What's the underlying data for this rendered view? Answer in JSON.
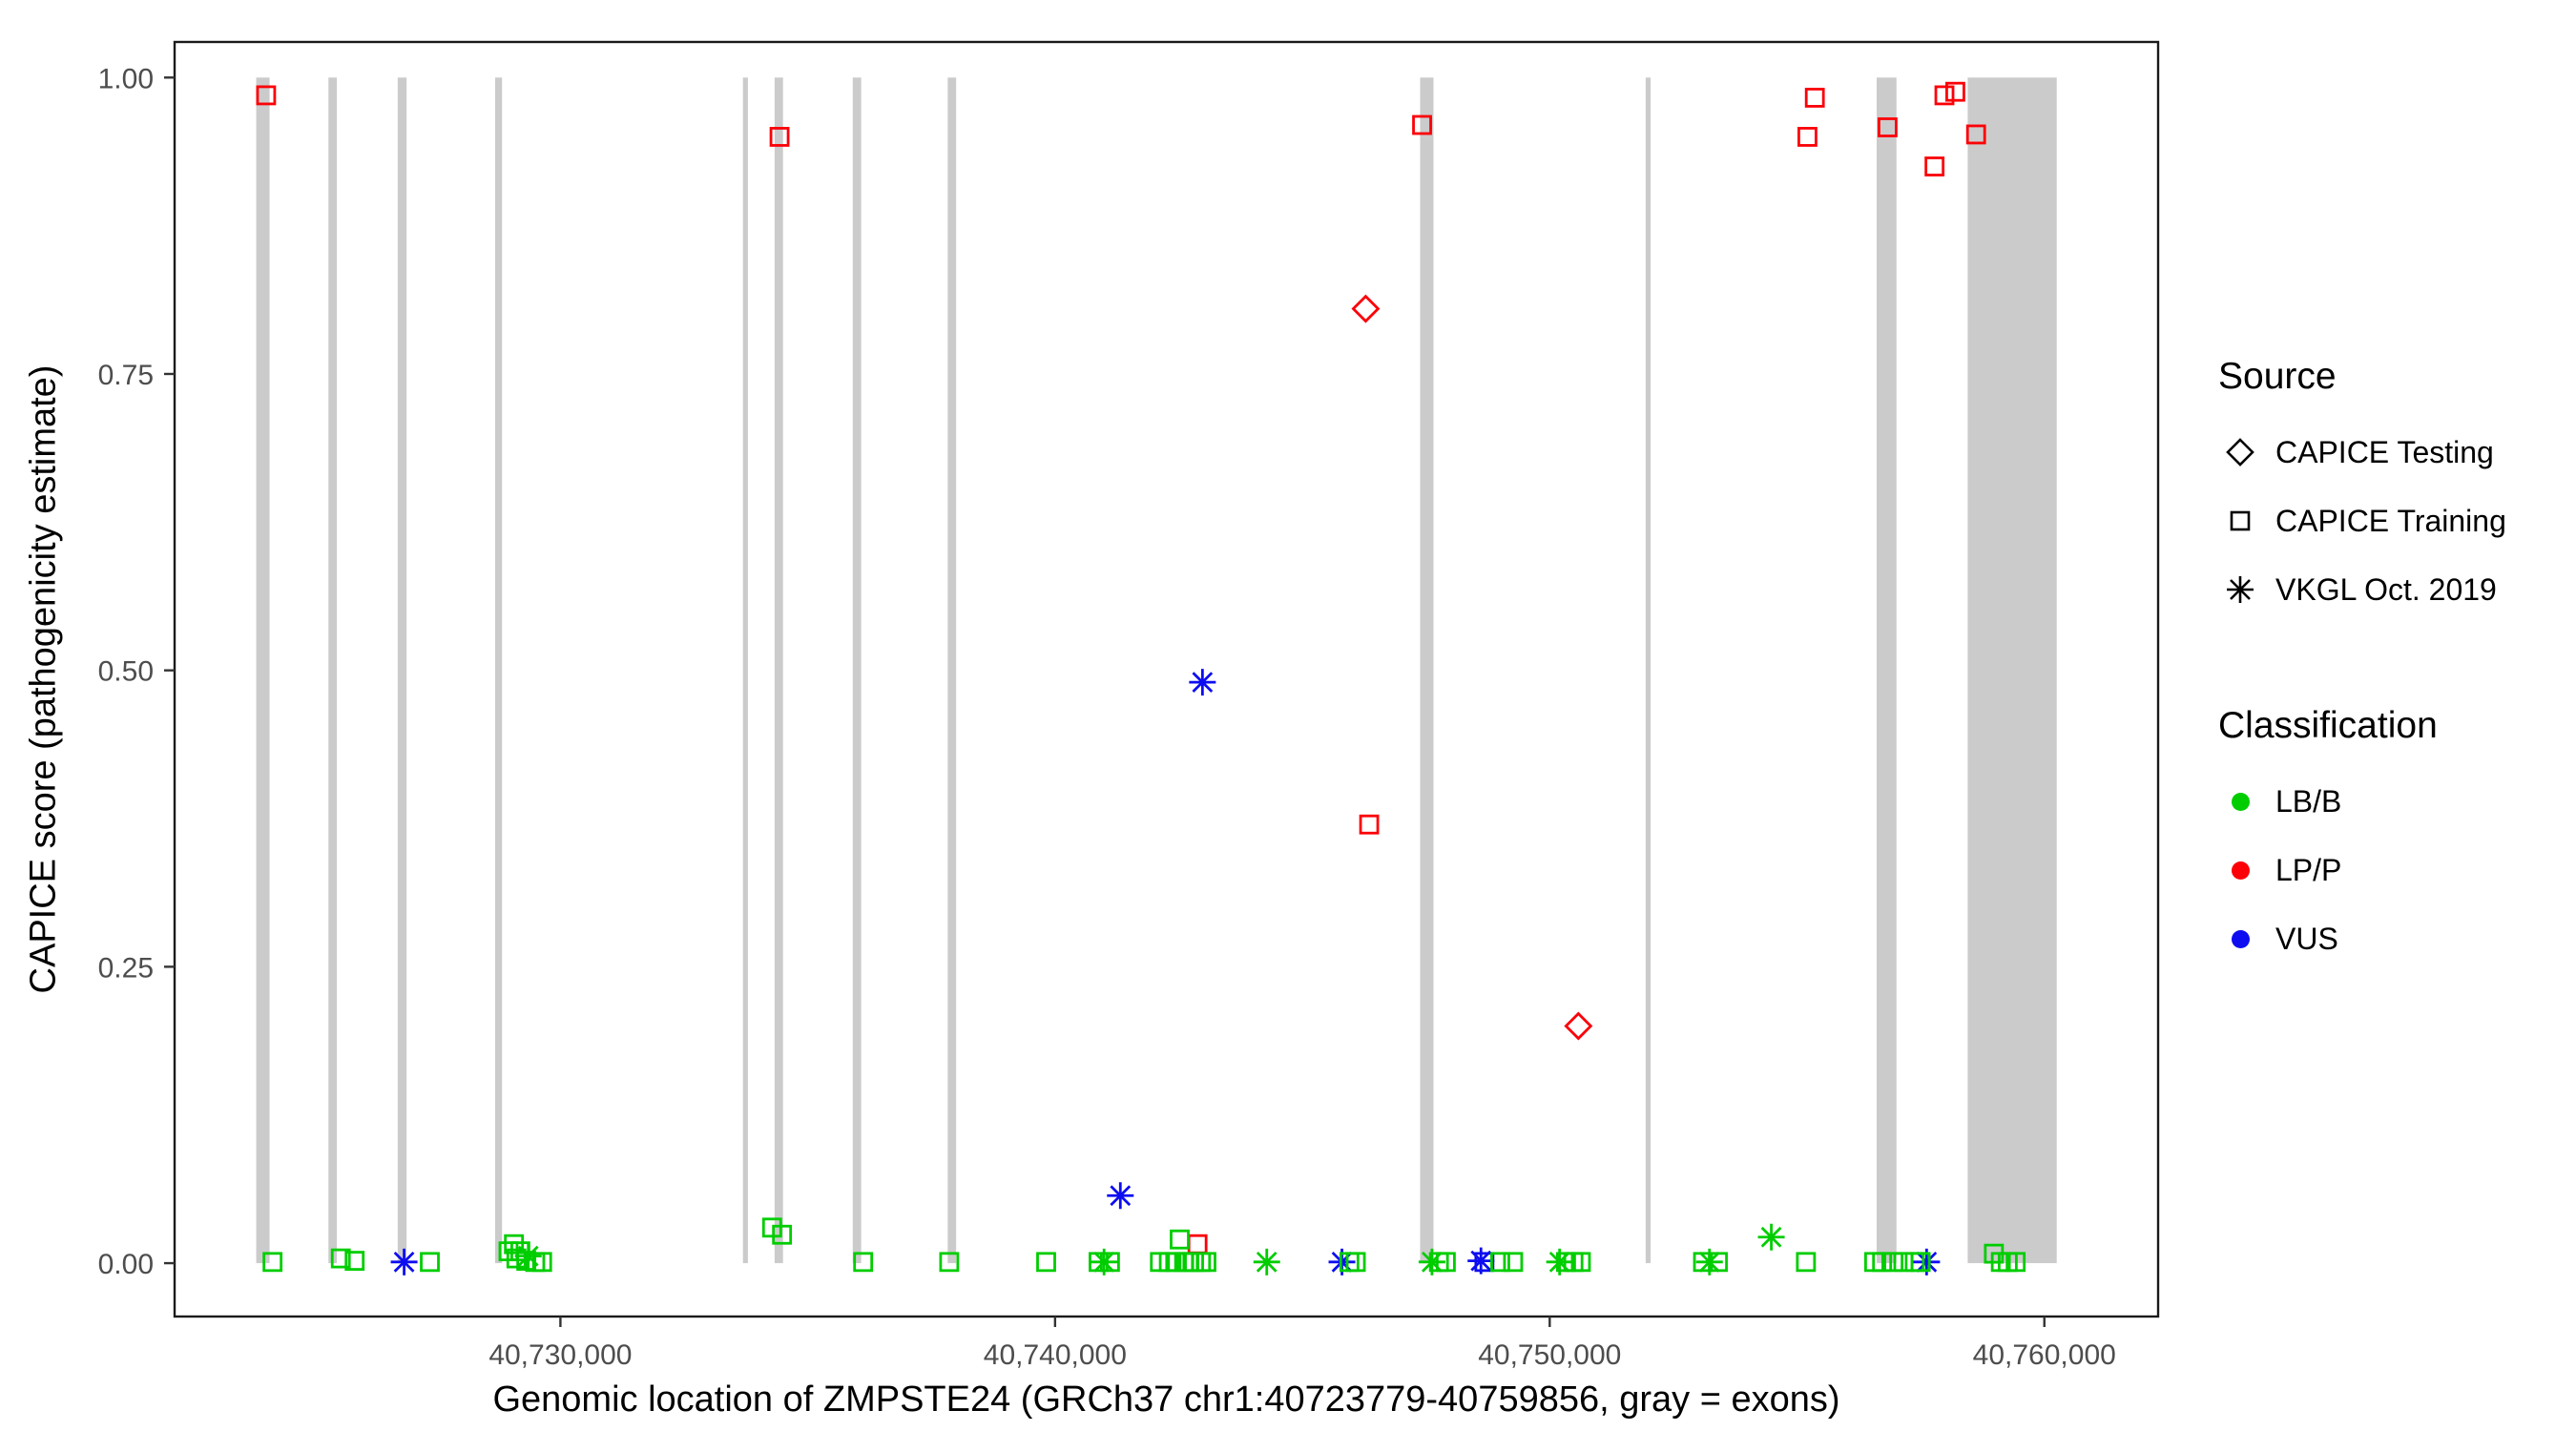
{
  "chart_data": {
    "type": "scatter",
    "title": "",
    "xlabel": "Genomic location of ZMPSTE24 (GRCh37 chr1:40723779-40759856, gray = exons)",
    "ylabel": "CAPICE score (pathogenicity estimate)",
    "xlim": [
      40722200,
      40762300
    ],
    "ylim": [
      -0.045,
      1.03
    ],
    "grid": false,
    "legend_position": "right",
    "exon_color": "#cbcbcb",
    "x_ticks": [
      {
        "value": 40730000,
        "label": "40,730,000"
      },
      {
        "value": 40740000,
        "label": "40,740,000"
      },
      {
        "value": 40750000,
        "label": "40,750,000"
      },
      {
        "value": 40760000,
        "label": "40,760,000"
      }
    ],
    "y_ticks": [
      {
        "value": 0.0,
        "label": "0.00"
      },
      {
        "value": 0.25,
        "label": "0.25"
      },
      {
        "value": 0.5,
        "label": "0.50"
      },
      {
        "value": 0.75,
        "label": "0.75"
      },
      {
        "value": 1.0,
        "label": "1.00"
      }
    ],
    "legend": {
      "source_title": "Source",
      "classification_title": "Classification"
    },
    "sources": [
      {
        "key": "testing",
        "label": "CAPICE Testing",
        "shape": "diamond"
      },
      {
        "key": "training",
        "label": "CAPICE Training",
        "shape": "square"
      },
      {
        "key": "vkgl",
        "label": "VKGL Oct. 2019",
        "shape": "asterisk"
      }
    ],
    "classifications": [
      {
        "key": "LB/B",
        "label": "LB/B",
        "color": "#00cd00"
      },
      {
        "key": "LP/P",
        "label": "LP/P",
        "color": "#fb0007"
      },
      {
        "key": "VUS",
        "label": "VUS",
        "color": "#0d0df0"
      }
    ],
    "exons": [
      [
        40723850,
        40724120
      ],
      [
        40725310,
        40725480
      ],
      [
        40726710,
        40726890
      ],
      [
        40728680,
        40728820
      ],
      [
        40733690,
        40733790
      ],
      [
        40734330,
        40734500
      ],
      [
        40735910,
        40736080
      ],
      [
        40737830,
        40738000
      ],
      [
        40747380,
        40747650
      ],
      [
        40751940,
        40752040
      ],
      [
        40756610,
        40757010
      ],
      [
        40758450,
        40760250
      ]
    ],
    "points": [
      {
        "x": 40724050,
        "y": 0.985,
        "s": "training",
        "c": "LP/P"
      },
      {
        "x": 40734430,
        "y": 0.95,
        "s": "training",
        "c": "LP/P"
      },
      {
        "x": 40742880,
        "y": 0.016,
        "s": "training",
        "c": "LP/P"
      },
      {
        "x": 40746350,
        "y": 0.37,
        "s": "training",
        "c": "LP/P"
      },
      {
        "x": 40747420,
        "y": 0.96,
        "s": "training",
        "c": "LP/P"
      },
      {
        "x": 40755210,
        "y": 0.95,
        "s": "training",
        "c": "LP/P"
      },
      {
        "x": 40755360,
        "y": 0.983,
        "s": "training",
        "c": "LP/P"
      },
      {
        "x": 40756830,
        "y": 0.958,
        "s": "training",
        "c": "LP/P"
      },
      {
        "x": 40757780,
        "y": 0.925,
        "s": "training",
        "c": "LP/P"
      },
      {
        "x": 40757980,
        "y": 0.985,
        "s": "training",
        "c": "LP/P"
      },
      {
        "x": 40758200,
        "y": 0.988,
        "s": "training",
        "c": "LP/P"
      },
      {
        "x": 40758620,
        "y": 0.952,
        "s": "training",
        "c": "LP/P"
      },
      {
        "x": 40746280,
        "y": 0.805,
        "s": "testing",
        "c": "LP/P"
      },
      {
        "x": 40750580,
        "y": 0.2,
        "s": "testing",
        "c": "LP/P"
      },
      {
        "x": 40726840,
        "y": 0.001,
        "s": "vkgl",
        "c": "VUS"
      },
      {
        "x": 40741320,
        "y": 0.057,
        "s": "vkgl",
        "c": "VUS"
      },
      {
        "x": 40742980,
        "y": 0.49,
        "s": "vkgl",
        "c": "VUS"
      },
      {
        "x": 40745800,
        "y": 0.001,
        "s": "vkgl",
        "c": "VUS"
      },
      {
        "x": 40748610,
        "y": 0.002,
        "s": "vkgl",
        "c": "VUS"
      },
      {
        "x": 40748680,
        "y": 0.001,
        "s": "training",
        "c": "VUS"
      },
      {
        "x": 40757620,
        "y": 0.001,
        "s": "vkgl",
        "c": "VUS"
      },
      {
        "x": 40724180,
        "y": 0.001,
        "s": "training",
        "c": "LB/B"
      },
      {
        "x": 40725560,
        "y": 0.004,
        "s": "training",
        "c": "LB/B"
      },
      {
        "x": 40725840,
        "y": 0.002,
        "s": "training",
        "c": "LB/B"
      },
      {
        "x": 40727360,
        "y": 0.001,
        "s": "training",
        "c": "LB/B"
      },
      {
        "x": 40728950,
        "y": 0.01,
        "s": "training",
        "c": "LB/B"
      },
      {
        "x": 40729060,
        "y": 0.016,
        "s": "training",
        "c": "LB/B"
      },
      {
        "x": 40729110,
        "y": 0.004,
        "s": "training",
        "c": "LB/B"
      },
      {
        "x": 40729190,
        "y": 0.01,
        "s": "training",
        "c": "LB/B"
      },
      {
        "x": 40729310,
        "y": 0.002,
        "s": "training",
        "c": "LB/B"
      },
      {
        "x": 40729490,
        "y": 0.001,
        "s": "training",
        "c": "LB/B"
      },
      {
        "x": 40729630,
        "y": 0.001,
        "s": "training",
        "c": "LB/B"
      },
      {
        "x": 40729350,
        "y": 0.006,
        "s": "vkgl",
        "c": "LB/B"
      },
      {
        "x": 40734280,
        "y": 0.03,
        "s": "training",
        "c": "LB/B"
      },
      {
        "x": 40734480,
        "y": 0.024,
        "s": "training",
        "c": "LB/B"
      },
      {
        "x": 40736120,
        "y": 0.001,
        "s": "training",
        "c": "LB/B"
      },
      {
        "x": 40737860,
        "y": 0.001,
        "s": "training",
        "c": "LB/B"
      },
      {
        "x": 40739820,
        "y": 0.001,
        "s": "training",
        "c": "LB/B"
      },
      {
        "x": 40740880,
        "y": 0.001,
        "s": "training",
        "c": "LB/B"
      },
      {
        "x": 40740990,
        "y": 0.001,
        "s": "vkgl",
        "c": "LB/B"
      },
      {
        "x": 40741110,
        "y": 0.001,
        "s": "training",
        "c": "LB/B"
      },
      {
        "x": 40742120,
        "y": 0.001,
        "s": "training",
        "c": "LB/B"
      },
      {
        "x": 40742300,
        "y": 0.001,
        "s": "training",
        "c": "LB/B"
      },
      {
        "x": 40742430,
        "y": 0.001,
        "s": "training",
        "c": "LB/B"
      },
      {
        "x": 40742520,
        "y": 0.02,
        "s": "training",
        "c": "LB/B"
      },
      {
        "x": 40742610,
        "y": 0.001,
        "s": "training",
        "c": "LB/B"
      },
      {
        "x": 40742700,
        "y": 0.001,
        "s": "training",
        "c": "LB/B"
      },
      {
        "x": 40742810,
        "y": 0.001,
        "s": "training",
        "c": "LB/B"
      },
      {
        "x": 40742950,
        "y": 0.001,
        "s": "training",
        "c": "LB/B"
      },
      {
        "x": 40743060,
        "y": 0.001,
        "s": "training",
        "c": "LB/B"
      },
      {
        "x": 40744280,
        "y": 0.001,
        "s": "vkgl",
        "c": "LB/B"
      },
      {
        "x": 40745950,
        "y": 0.001,
        "s": "training",
        "c": "LB/B"
      },
      {
        "x": 40746080,
        "y": 0.001,
        "s": "training",
        "c": "LB/B"
      },
      {
        "x": 40747620,
        "y": 0.001,
        "s": "vkgl",
        "c": "LB/B"
      },
      {
        "x": 40747760,
        "y": 0.001,
        "s": "training",
        "c": "LB/B"
      },
      {
        "x": 40747900,
        "y": 0.001,
        "s": "training",
        "c": "LB/B"
      },
      {
        "x": 40749000,
        "y": 0.001,
        "s": "training",
        "c": "LB/B"
      },
      {
        "x": 40749260,
        "y": 0.001,
        "s": "training",
        "c": "LB/B"
      },
      {
        "x": 40750200,
        "y": 0.001,
        "s": "vkgl",
        "c": "LB/B"
      },
      {
        "x": 40750330,
        "y": 0.001,
        "s": "training",
        "c": "LB/B"
      },
      {
        "x": 40750480,
        "y": 0.001,
        "s": "training",
        "c": "LB/B"
      },
      {
        "x": 40750630,
        "y": 0.001,
        "s": "training",
        "c": "LB/B"
      },
      {
        "x": 40753100,
        "y": 0.001,
        "s": "training",
        "c": "LB/B"
      },
      {
        "x": 40753230,
        "y": 0.001,
        "s": "vkgl",
        "c": "LB/B"
      },
      {
        "x": 40753400,
        "y": 0.001,
        "s": "training",
        "c": "LB/B"
      },
      {
        "x": 40754480,
        "y": 0.022,
        "s": "vkgl",
        "c": "LB/B"
      },
      {
        "x": 40755180,
        "y": 0.001,
        "s": "training",
        "c": "LB/B"
      },
      {
        "x": 40756560,
        "y": 0.001,
        "s": "training",
        "c": "LB/B"
      },
      {
        "x": 40756720,
        "y": 0.001,
        "s": "training",
        "c": "LB/B"
      },
      {
        "x": 40756950,
        "y": 0.001,
        "s": "training",
        "c": "LB/B"
      },
      {
        "x": 40757150,
        "y": 0.001,
        "s": "training",
        "c": "LB/B"
      },
      {
        "x": 40757380,
        "y": 0.001,
        "s": "training",
        "c": "LB/B"
      },
      {
        "x": 40757500,
        "y": 0.001,
        "s": "training",
        "c": "LB/B"
      },
      {
        "x": 40758980,
        "y": 0.008,
        "s": "training",
        "c": "LB/B"
      },
      {
        "x": 40759120,
        "y": 0.001,
        "s": "training",
        "c": "LB/B"
      },
      {
        "x": 40759260,
        "y": 0.001,
        "s": "training",
        "c": "LB/B"
      },
      {
        "x": 40759420,
        "y": 0.001,
        "s": "training",
        "c": "LB/B"
      }
    ]
  }
}
